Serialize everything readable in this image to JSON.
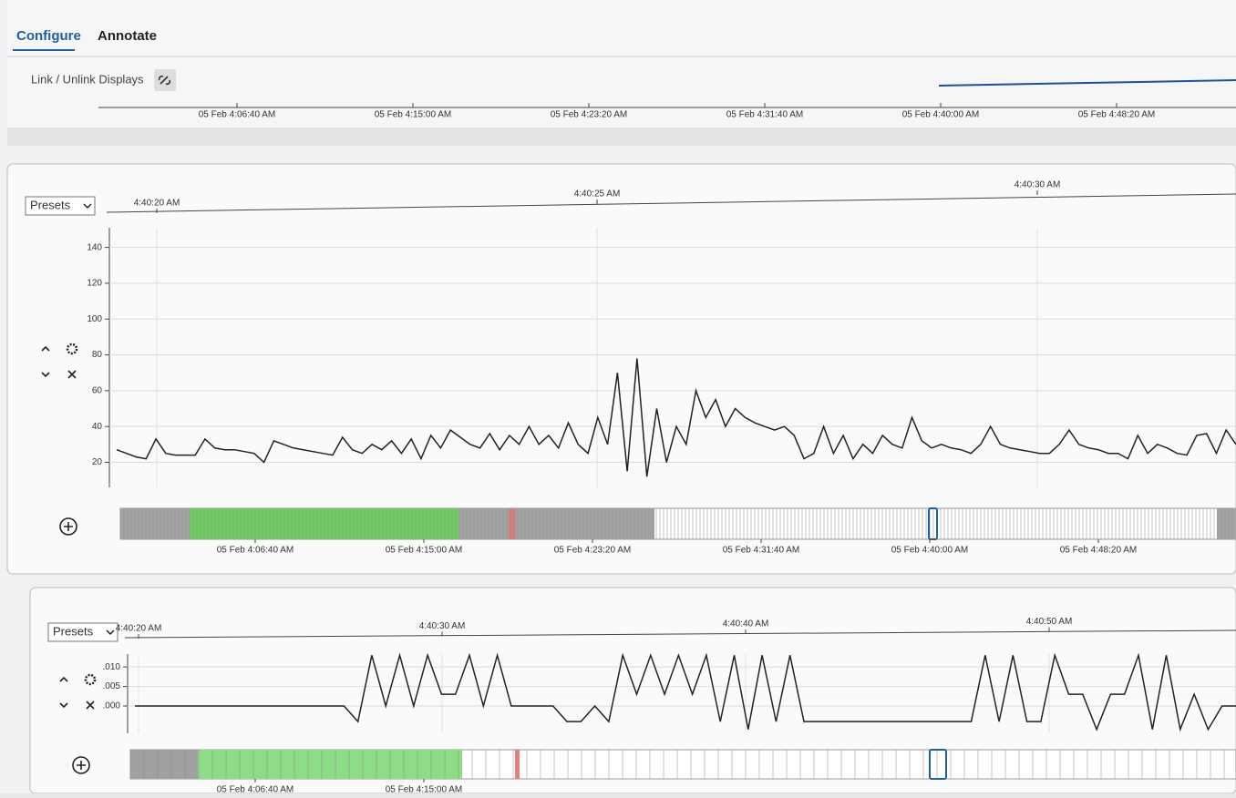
{
  "tabs": [
    "Configure",
    "Annotate"
  ],
  "toolbar": {
    "link_label": "Link / Unlink Displays"
  },
  "overview": {
    "ticks": [
      "05 Feb 4:06:40 AM",
      "05 Feb 4:15:00 AM",
      "05 Feb 4:23:20 AM",
      "05 Feb 4:31:40 AM",
      "05 Feb 4:40:00 AM",
      "05 Feb 4:48:20 AM"
    ]
  },
  "panels": [
    {
      "presets": "Presets",
      "time_ticks": [
        "4:40:20 AM",
        "4:40:25 AM",
        "4:40:30 AM"
      ],
      "chart": {
        "type": "line",
        "color": "#222222",
        "grid": true,
        "ylim": [
          6,
          151
        ],
        "yticks": [
          20,
          40,
          60,
          80,
          100,
          120,
          140
        ],
        "values": [
          27,
          25,
          23,
          22,
          33,
          25,
          24,
          24,
          24,
          33,
          28,
          27,
          27,
          26,
          25,
          20,
          32,
          30,
          28,
          27,
          26,
          25,
          24,
          34,
          27,
          25,
          30,
          27,
          32,
          25,
          33,
          22,
          35,
          28,
          38,
          34,
          30,
          28,
          36,
          27,
          35,
          30,
          40,
          30,
          35,
          28,
          42,
          30,
          25,
          45,
          30,
          70,
          15,
          78,
          12,
          50,
          20,
          40,
          30,
          60,
          45,
          55,
          40,
          50,
          45,
          42,
          40,
          38,
          40,
          35,
          22,
          25,
          40,
          25,
          35,
          22,
          30,
          25,
          35,
          30,
          28,
          45,
          32,
          28,
          30,
          28,
          27,
          25,
          30,
          40,
          30,
          28,
          27,
          26,
          25,
          25,
          30,
          38,
          30,
          28,
          27,
          25,
          25,
          22,
          35,
          25,
          30,
          28,
          25,
          24,
          35,
          36,
          25,
          38,
          30
        ]
      },
      "timeline_ticks": [
        "05 Feb 4:06:40 AM",
        "05 Feb 4:15:00 AM",
        "05 Feb 4:23:20 AM",
        "05 Feb 4:31:40 AM",
        "05 Feb 4:40:00 AM",
        "05 Feb 4:48:20 AM"
      ]
    },
    {
      "presets": "Presets",
      "time_ticks": [
        "4:40:20 AM",
        "4:40:30 AM",
        "4:40:40 AM",
        "4:40:50 AM"
      ],
      "chart": {
        "type": "line",
        "color": "#222222",
        "grid": true,
        "ylim": [
          -0.007,
          0.0133
        ],
        "yticks": [
          {
            "value": 0,
            "label": ".000"
          },
          {
            "value": 0.005,
            "label": ".005"
          },
          {
            "value": 0.01,
            "label": ".010"
          }
        ],
        "values": [
          0,
          0,
          0,
          0,
          0,
          0,
          0,
          0,
          0,
          0,
          0,
          0,
          0,
          0,
          0,
          0,
          -0.004,
          0.013,
          0,
          0.013,
          0,
          0.013,
          0.003,
          0.003,
          0.013,
          0,
          0.013,
          0,
          0,
          0,
          0,
          -0.004,
          -0.004,
          0,
          -0.004,
          0.013,
          0.003,
          0.013,
          0.003,
          0.013,
          0.003,
          0.013,
          -0.004,
          0.013,
          -0.006,
          0.013,
          -0.004,
          0.013,
          -0.004,
          -0.004,
          -0.004,
          -0.004,
          -0.004,
          -0.004,
          -0.004,
          -0.004,
          -0.004,
          -0.004,
          -0.004,
          -0.004,
          -0.004,
          0.013,
          -0.004,
          0.013,
          -0.004,
          -0.004,
          0.013,
          0.003,
          0.003,
          -0.006,
          0.003,
          0.003,
          0.013,
          -0.006,
          0.013,
          -0.006,
          0.003,
          -0.006,
          0,
          0
        ]
      },
      "timeline_ticks": [
        "05 Feb 4:06:40 AM",
        "05 Feb 4:15:00 AM"
      ]
    }
  ]
}
